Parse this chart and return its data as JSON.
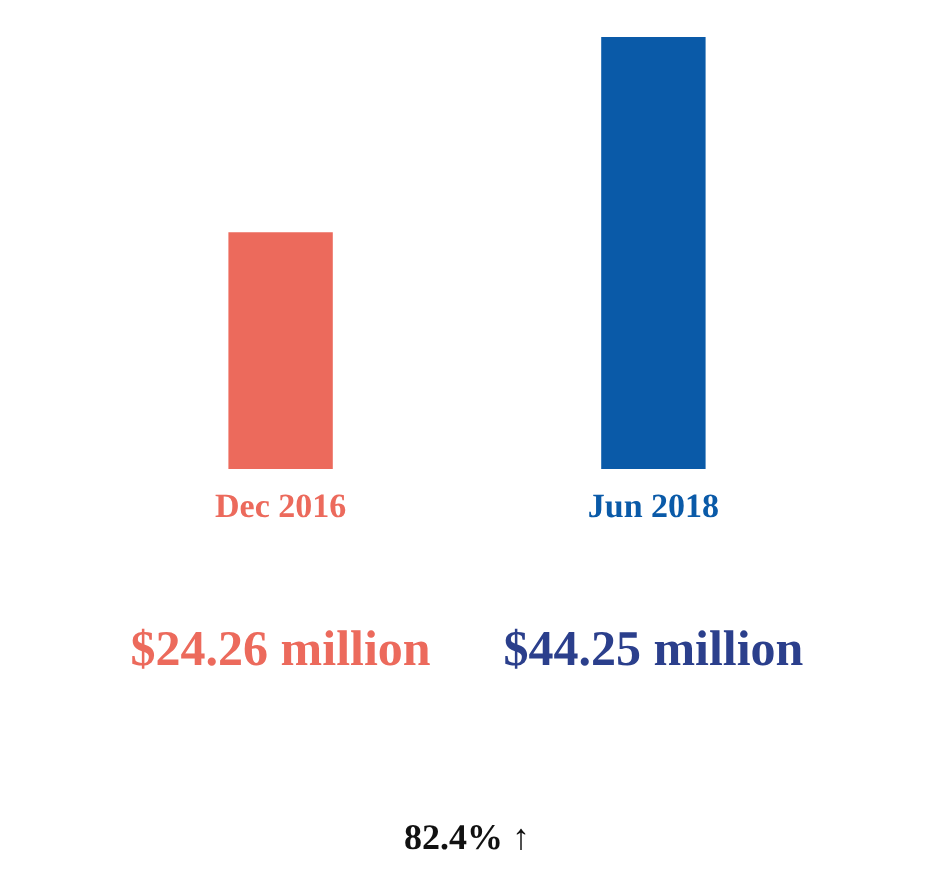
{
  "chart_data": {
    "type": "bar",
    "categories": [
      "Dec 2016",
      "Jun 2018"
    ],
    "values": [
      24.26,
      44.25
    ],
    "colors": [
      "#ec6a5c",
      "#0a5aa8"
    ],
    "value_labels": [
      "$24.26 million",
      "$44.25 million"
    ],
    "annotations": [
      "82.4% ↑"
    ]
  }
}
